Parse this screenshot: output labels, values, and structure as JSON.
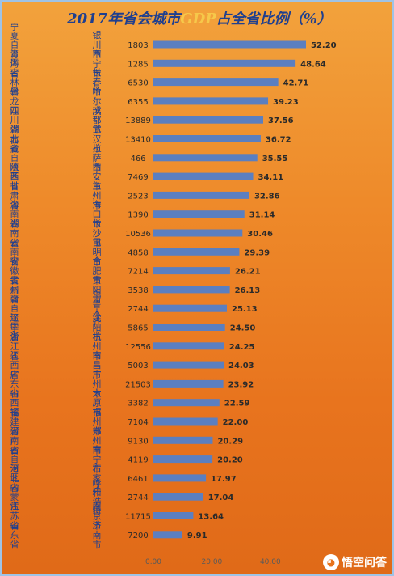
{
  "title_prefix": "2017年省会城市",
  "title_highlight": "GDP",
  "title_suffix": "占全省比例（%）",
  "watermark": "悟空问答",
  "icons": {
    "watermark_logo": "chat-bubble-icon"
  },
  "colors": {
    "bar": "#5b7fc0",
    "background": "#ee8a2a",
    "title": "#1f3f8f"
  },
  "chart_data": {
    "type": "bar",
    "orientation": "horizontal",
    "title": "2017年省会城市GDP占全省比例（%）",
    "xlim": [
      0,
      52.2
    ],
    "x_ticks": [
      "0.00",
      "20.00",
      "40.00"
    ],
    "grid": false,
    "rows": [
      {
        "province": "宁夏自治区",
        "city": "银川市",
        "gdp": "1803",
        "value": 52.2
      },
      {
        "province": "青海省",
        "city": "西宁市",
        "gdp": "1285",
        "value": 48.64
      },
      {
        "province": "吉林省",
        "city": "长春市",
        "gdp": "6530",
        "value": 42.71
      },
      {
        "province": "黑龙江",
        "city": "哈尔滨",
        "gdp": "6355",
        "value": 39.23
      },
      {
        "province": "四川省",
        "city": "成都市",
        "gdp": "13889",
        "value": 37.56
      },
      {
        "province": "湖北省",
        "city": "武汉市",
        "gdp": "13410",
        "value": 36.72
      },
      {
        "province": "西藏自治区",
        "city": "拉萨市",
        "gdp": "466",
        "value": 35.55
      },
      {
        "province": "陕西省",
        "city": "西安市",
        "gdp": "7469",
        "value": 34.11
      },
      {
        "province": "甘肃省",
        "city": "兰州市",
        "gdp": "2523",
        "value": 32.86
      },
      {
        "province": "海南省",
        "city": "海口市",
        "gdp": "1390",
        "value": 31.14
      },
      {
        "province": "湖南省",
        "city": "长沙市",
        "gdp": "10536",
        "value": 30.46
      },
      {
        "province": "云南省",
        "city": "昆明市",
        "gdp": "4858",
        "value": 29.39
      },
      {
        "province": "安徽省",
        "city": "合肥市",
        "gdp": "7214",
        "value": 26.21
      },
      {
        "province": "贵州省",
        "city": "贵阳市",
        "gdp": "3538",
        "value": 26.13
      },
      {
        "province": "新疆自治区",
        "city": "乌鲁木齐",
        "gdp": "2744",
        "value": 25.13
      },
      {
        "province": "辽宁省",
        "city": "沈阳市",
        "gdp": "5865",
        "value": 24.5
      },
      {
        "province": "浙江省",
        "city": "杭州市",
        "gdp": "12556",
        "value": 24.25
      },
      {
        "province": "江西省",
        "city": "南昌市",
        "gdp": "5003",
        "value": 24.03
      },
      {
        "province": "广东省",
        "city": "广州市",
        "gdp": "21503",
        "value": 23.92
      },
      {
        "province": "山西省",
        "city": "太原市",
        "gdp": "3382",
        "value": 22.59
      },
      {
        "province": "福建省",
        "city": "福州市",
        "gdp": "7104",
        "value": 22.0
      },
      {
        "province": "河南省",
        "city": "郑州市",
        "gdp": "9130",
        "value": 20.29
      },
      {
        "province": "广西自治区",
        "city": "南宁市",
        "gdp": "4119",
        "value": 20.2
      },
      {
        "province": "河北省",
        "city": "石家庄",
        "gdp": "6461",
        "value": 17.97
      },
      {
        "province": "内蒙古",
        "city": "呼和浩特",
        "gdp": "2744",
        "value": 17.04
      },
      {
        "province": "江苏省",
        "city": "南京市",
        "gdp": "11715",
        "value": 13.64
      },
      {
        "province": "山东省",
        "city": "济南市",
        "gdp": "7200",
        "value": 9.91
      }
    ]
  }
}
